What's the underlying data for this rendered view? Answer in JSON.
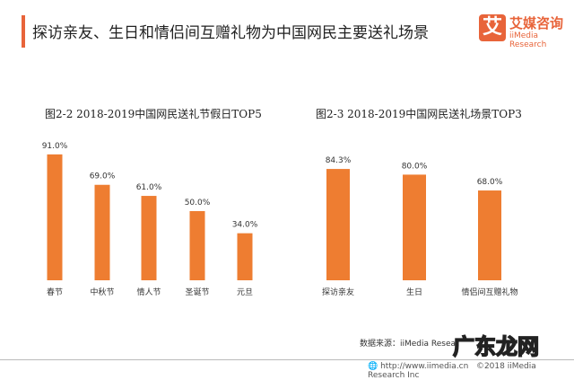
{
  "header": {
    "title": "探访亲友、生日和情侣间互赠礼物为中国网民主要送礼场景",
    "logo_cn": "艾媒咨询",
    "logo_en": "iiMedia Research",
    "logo_mark": "艾"
  },
  "colors": {
    "bar": "#ee7d31",
    "accent": "#e8643a"
  },
  "chart_data": [
    {
      "type": "bar",
      "title": "图2-2 2018-2019中国网民送礼节假日TOP5",
      "categories": [
        "春节",
        "中秋节",
        "情人节",
        "圣诞节",
        "元旦"
      ],
      "values": [
        91.0,
        69.0,
        61.0,
        50.0,
        34.0
      ],
      "labels": [
        "91.0%",
        "69.0%",
        "61.0%",
        "50.0%",
        "34.0%"
      ],
      "ylim": [
        0,
        100
      ],
      "grid": false
    },
    {
      "type": "bar",
      "title": "图2-3 2018-2019中国网民送礼场景TOP3",
      "categories": [
        "探访亲友",
        "生日",
        "情侣间互赠礼物"
      ],
      "values": [
        84.3,
        80.0,
        68.0
      ],
      "labels": [
        "84.3%",
        "80.0%",
        "68.0%"
      ],
      "ylim": [
        0,
        100
      ],
      "grid": false
    }
  ],
  "footer": {
    "source": "数据来源：iiMedia Resea",
    "url": "http://www.iimedia.cn",
    "copyright": "©2018  iiMedia Research Inc",
    "watermark": "广东龙网"
  }
}
